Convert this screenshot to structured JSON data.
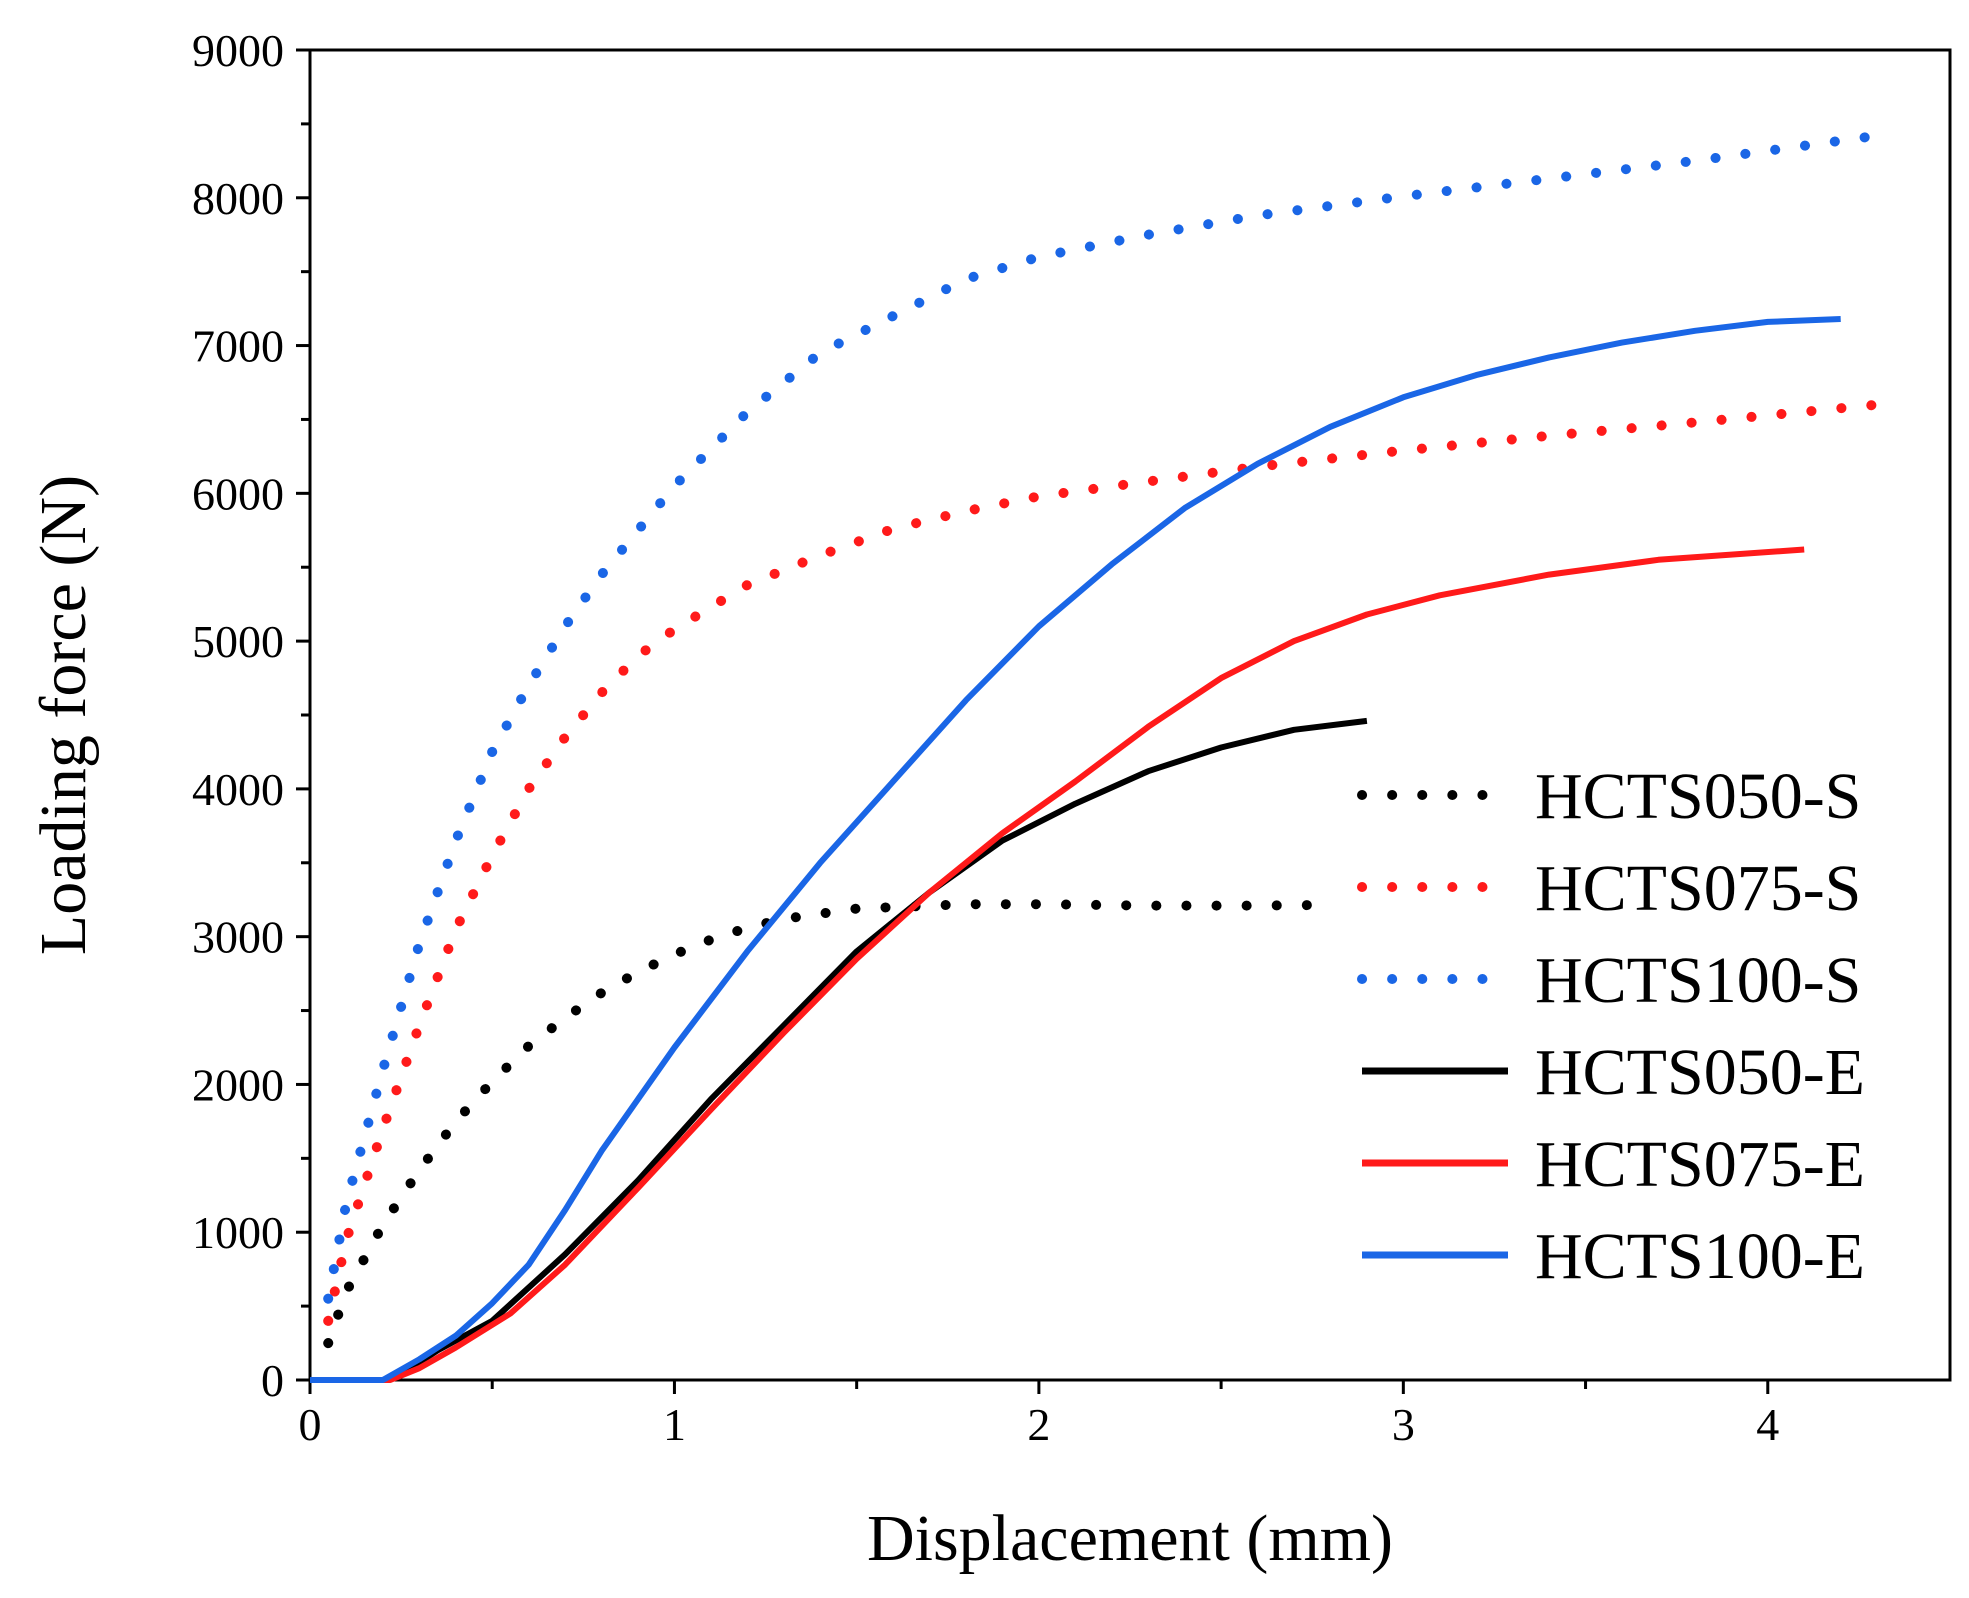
{
  "chart_data": {
    "type": "line",
    "title": "",
    "xlabel": "Displacement (mm)",
    "ylabel": "Loading force (N)",
    "xlim": [
      0,
      4.5
    ],
    "ylim": [
      0,
      9000
    ],
    "xticks": [
      0,
      1,
      2,
      3,
      4
    ],
    "xtick_labels": [
      "0",
      "1",
      "2",
      "3",
      "4"
    ],
    "yticks": [
      0,
      1000,
      2000,
      3000,
      4000,
      5000,
      6000,
      7000,
      8000,
      9000
    ],
    "ytick_labels": [
      "0",
      "1000",
      "2000",
      "3000",
      "4000",
      "5000",
      "6000",
      "7000",
      "8000",
      "9000"
    ],
    "grid": false,
    "legend_position": "right",
    "series": [
      {
        "name": "HCTS050-S",
        "style": "dotted",
        "color": "#000000",
        "x": [
          0.05,
          0.1,
          0.2,
          0.3,
          0.4,
          0.5,
          0.6,
          0.7,
          0.8,
          0.9,
          1.0,
          1.1,
          1.2,
          1.3,
          1.5,
          1.8,
          2.0,
          2.3,
          2.6,
          2.8
        ],
        "y": [
          250,
          600,
          1050,
          1420,
          1750,
          2020,
          2260,
          2450,
          2620,
          2760,
          2880,
          2980,
          3060,
          3120,
          3190,
          3220,
          3220,
          3210,
          3210,
          3215
        ]
      },
      {
        "name": "HCTS075-S",
        "style": "dotted",
        "color": "#ff1a1a",
        "x": [
          0.05,
          0.1,
          0.2,
          0.3,
          0.4,
          0.5,
          0.6,
          0.7,
          0.8,
          0.9,
          1.0,
          1.1,
          1.2,
          1.4,
          1.6,
          1.8,
          2.0,
          2.3,
          2.6,
          3.0,
          3.4,
          3.8,
          4.3
        ],
        "y": [
          400,
          950,
          1700,
          2400,
          3050,
          3550,
          4000,
          4350,
          4650,
          4900,
          5080,
          5230,
          5380,
          5580,
          5760,
          5880,
          5980,
          6080,
          6180,
          6290,
          6390,
          6480,
          6600
        ]
      },
      {
        "name": "HCTS100-S",
        "style": "dotted",
        "color": "#1a66e6",
        "x": [
          0.05,
          0.1,
          0.2,
          0.3,
          0.4,
          0.5,
          0.6,
          0.7,
          0.8,
          0.9,
          1.0,
          1.1,
          1.2,
          1.3,
          1.4,
          1.6,
          1.8,
          2.0,
          2.3,
          2.6,
          3.0,
          3.4,
          3.8,
          4.3
        ],
        "y": [
          550,
          1200,
          2100,
          2950,
          3650,
          4250,
          4700,
          5100,
          5450,
          5750,
          6050,
          6300,
          6550,
          6750,
          6950,
          7200,
          7450,
          7600,
          7750,
          7880,
          8010,
          8130,
          8250,
          8420
        ]
      },
      {
        "name": "HCTS050-E",
        "style": "solid",
        "color": "#000000",
        "x": [
          0,
          0.2,
          0.25,
          0.35,
          0.5,
          0.7,
          0.9,
          1.1,
          1.3,
          1.5,
          1.7,
          1.9,
          2.1,
          2.3,
          2.5,
          2.7,
          2.9
        ],
        "y": [
          0,
          0,
          40,
          200,
          400,
          850,
          1350,
          1900,
          2400,
          2900,
          3300,
          3650,
          3900,
          4120,
          4280,
          4400,
          4460
        ]
      },
      {
        "name": "HCTS075-E",
        "style": "solid",
        "color": "#ff1a1a",
        "x": [
          0,
          0.22,
          0.3,
          0.4,
          0.55,
          0.7,
          0.9,
          1.1,
          1.3,
          1.5,
          1.7,
          1.9,
          2.1,
          2.3,
          2.5,
          2.7,
          2.9,
          3.1,
          3.4,
          3.7,
          4.1
        ],
        "y": [
          0,
          0,
          80,
          220,
          450,
          780,
          1300,
          1830,
          2350,
          2850,
          3300,
          3700,
          4050,
          4420,
          4750,
          5000,
          5180,
          5310,
          5450,
          5550,
          5620
        ]
      },
      {
        "name": "HCTS100-E",
        "style": "solid",
        "color": "#1a66e6",
        "x": [
          0,
          0.2,
          0.3,
          0.4,
          0.5,
          0.6,
          0.7,
          0.8,
          1.0,
          1.2,
          1.4,
          1.6,
          1.8,
          2.0,
          2.2,
          2.4,
          2.6,
          2.8,
          3.0,
          3.2,
          3.4,
          3.6,
          3.8,
          4.0,
          4.2
        ],
        "y": [
          0,
          0,
          140,
          300,
          520,
          780,
          1150,
          1550,
          2250,
          2900,
          3500,
          4050,
          4600,
          5100,
          5520,
          5900,
          6200,
          6450,
          6650,
          6800,
          6920,
          7020,
          7100,
          7160,
          7180
        ]
      }
    ]
  }
}
